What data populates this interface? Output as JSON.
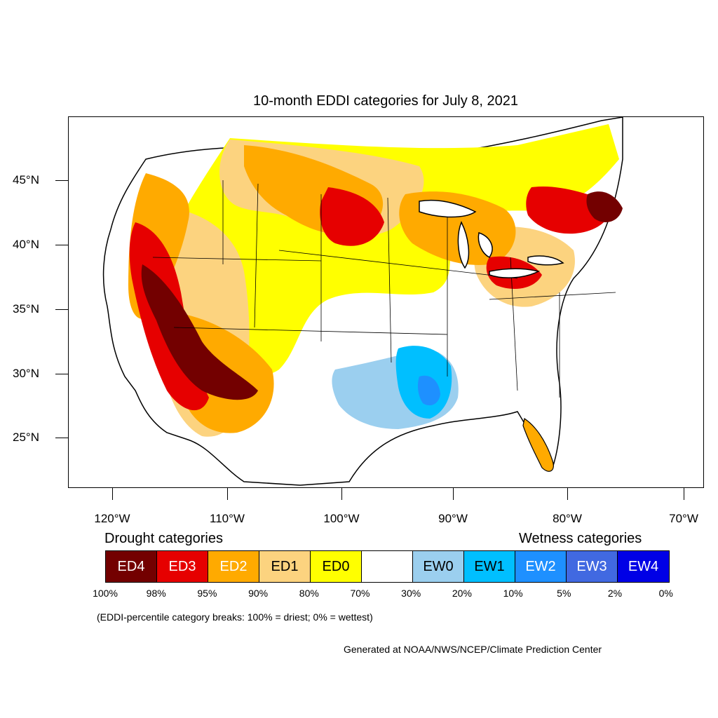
{
  "title": "10-month EDDI categories for July 8, 2021",
  "map": {
    "latitude_labels": [
      "45°N",
      "40°N",
      "35°N",
      "30°N",
      "25°N"
    ],
    "longitude_labels": [
      "120°W",
      "110°W",
      "100°W",
      "90°W",
      "80°W",
      "70°W"
    ]
  },
  "legend": {
    "drought_heading": "Drought categories",
    "wetness_heading": "Wetness categories",
    "categories": [
      {
        "label": "ED4",
        "color": "#730000",
        "text_color": "#ffffff"
      },
      {
        "label": "ED3",
        "color": "#e60000",
        "text_color": "#ffffff"
      },
      {
        "label": "ED2",
        "color": "#ffaa00",
        "text_color": "#ffffff"
      },
      {
        "label": "ED1",
        "color": "#fcd37f",
        "text_color": "#000000"
      },
      {
        "label": "ED0",
        "color": "#ffff00",
        "text_color": "#000000"
      },
      {
        "label": "",
        "color": "#ffffff",
        "text_color": "#000000"
      },
      {
        "label": "EW0",
        "color": "#9bcfef",
        "text_color": "#000000"
      },
      {
        "label": "EW1",
        "color": "#00bfff",
        "text_color": "#000000"
      },
      {
        "label": "EW2",
        "color": "#1e90ff",
        "text_color": "#ffffff"
      },
      {
        "label": "EW3",
        "color": "#4169e1",
        "text_color": "#ffffff"
      },
      {
        "label": "EW4",
        "color": "#0000e6",
        "text_color": "#ffffff"
      }
    ],
    "breaks": [
      "100%",
      "98%",
      "95%",
      "90%",
      "80%",
      "70%",
      "30%",
      "20%",
      "10%",
      "5%",
      "2%",
      "0%"
    ]
  },
  "note": "(EDDI-percentile category breaks: 100% = driest; 0% = wettest)",
  "credit": "Generated at NOAA/NWS/NCEP/Climate Prediction Center"
}
